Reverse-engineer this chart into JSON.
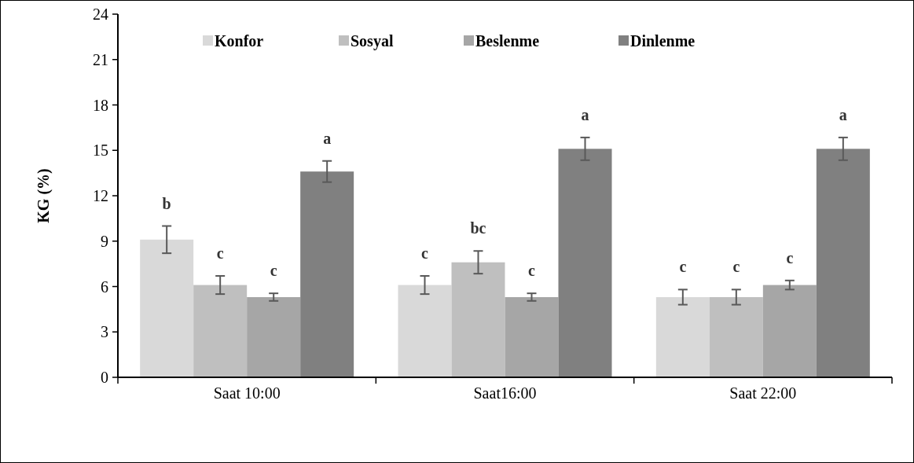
{
  "chart_data": {
    "type": "bar",
    "ylabel": "KG (%)",
    "categories": [
      "Saat 10:00",
      "Saat16:00",
      "Saat 22:00"
    ],
    "series": [
      {
        "name": "Konfor",
        "color": "#d9d9d9",
        "values": [
          9.1,
          6.1,
          5.3
        ],
        "errors": [
          0.9,
          0.6,
          0.5
        ],
        "value_labels": [
          "b",
          "c",
          "c"
        ]
      },
      {
        "name": "Sosyal",
        "color": "#bfbfbf",
        "values": [
          6.1,
          7.6,
          5.3
        ],
        "errors": [
          0.6,
          0.75,
          0.5
        ],
        "value_labels": [
          "c",
          "bc",
          "c"
        ]
      },
      {
        "name": "Beslenme",
        "color": "#a6a6a6",
        "values": [
          5.3,
          5.3,
          6.1
        ],
        "errors": [
          0.25,
          0.25,
          0.3
        ],
        "value_labels": [
          "c",
          "c",
          "c"
        ]
      },
      {
        "name": "Dinlenme",
        "color": "#808080",
        "values": [
          13.6,
          15.1,
          15.1
        ],
        "errors": [
          0.7,
          0.75,
          0.75
        ],
        "value_labels": [
          "a",
          "a",
          "a"
        ]
      }
    ],
    "ylim": [
      0,
      24
    ],
    "yticks": [
      0,
      3,
      6,
      9,
      12,
      15,
      18,
      21,
      24
    ],
    "grid": false,
    "legend": "top"
  }
}
